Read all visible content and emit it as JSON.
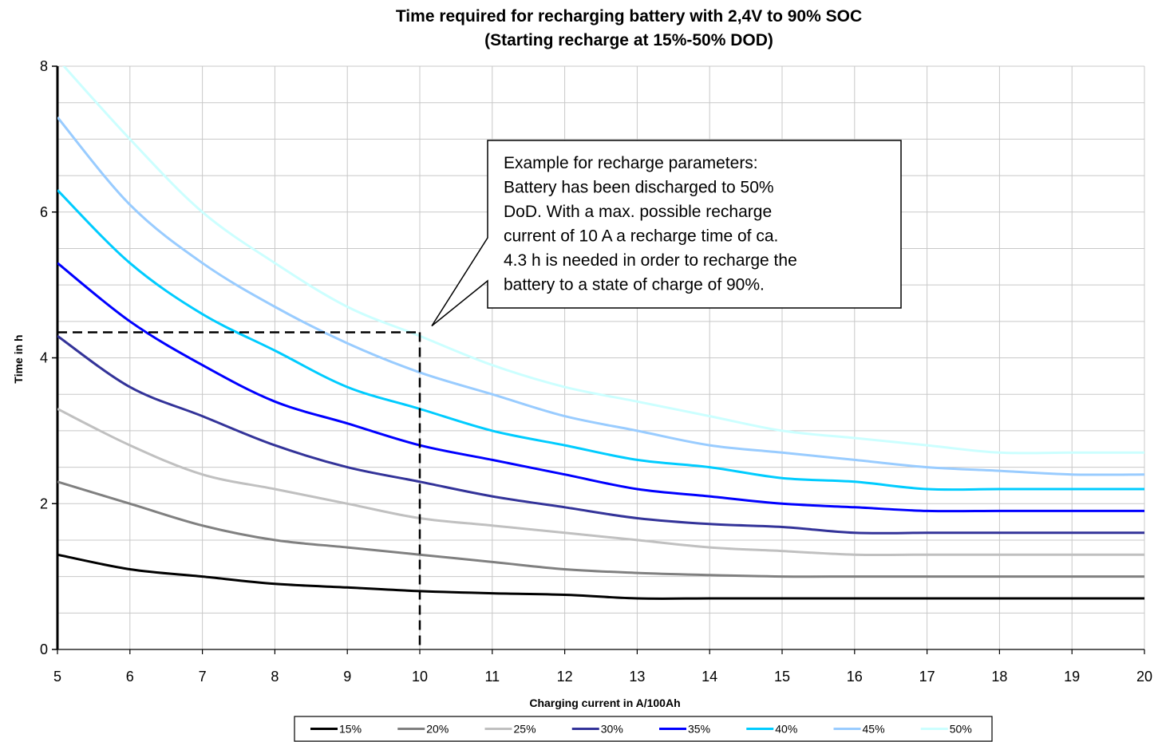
{
  "chart_data": {
    "type": "line",
    "title": "Time required for recharging battery with 2,4V to 90% SOC",
    "subtitle": "(Starting recharge at 15%-50% DOD)",
    "xlabel": "Charging current in A/100Ah",
    "ylabel": "Time in h",
    "xlim": [
      5,
      20
    ],
    "ylim": [
      0,
      8
    ],
    "x_ticks": [
      "5",
      "6",
      "7",
      "8",
      "9",
      "10",
      "11",
      "12",
      "13",
      "14",
      "15",
      "16",
      "17",
      "18",
      "19",
      "20"
    ],
    "y_ticks": [
      "0",
      "2",
      "4",
      "6",
      "8"
    ],
    "grid": true,
    "legend_position": "bottom",
    "x": [
      5,
      6,
      7,
      8,
      9,
      10,
      11,
      12,
      13,
      14,
      15,
      16,
      17,
      18,
      19,
      20
    ],
    "series": [
      {
        "name": "15%",
        "color": "#000000",
        "values": [
          1.3,
          1.1,
          1.0,
          0.9,
          0.85,
          0.8,
          0.77,
          0.75,
          0.7,
          0.7,
          0.7,
          0.7,
          0.7,
          0.7,
          0.7,
          0.7
        ]
      },
      {
        "name": "20%",
        "color": "#808080",
        "values": [
          2.3,
          2.0,
          1.7,
          1.5,
          1.4,
          1.3,
          1.2,
          1.1,
          1.05,
          1.02,
          1.0,
          1.0,
          1.0,
          1.0,
          1.0,
          1.0
        ]
      },
      {
        "name": "25%",
        "color": "#c0c0c0",
        "values": [
          3.3,
          2.8,
          2.4,
          2.2,
          2.0,
          1.8,
          1.7,
          1.6,
          1.5,
          1.4,
          1.35,
          1.3,
          1.3,
          1.3,
          1.3,
          1.3
        ]
      },
      {
        "name": "30%",
        "color": "#333399",
        "values": [
          4.3,
          3.6,
          3.2,
          2.8,
          2.5,
          2.3,
          2.1,
          1.95,
          1.8,
          1.72,
          1.68,
          1.6,
          1.6,
          1.6,
          1.6,
          1.6
        ]
      },
      {
        "name": "35%",
        "color": "#0000ff",
        "values": [
          5.3,
          4.5,
          3.9,
          3.4,
          3.1,
          2.8,
          2.6,
          2.4,
          2.2,
          2.1,
          2.0,
          1.95,
          1.9,
          1.9,
          1.9,
          1.9
        ]
      },
      {
        "name": "40%",
        "color": "#00ccff",
        "values": [
          6.3,
          5.3,
          4.6,
          4.1,
          3.6,
          3.3,
          3.0,
          2.8,
          2.6,
          2.5,
          2.35,
          2.3,
          2.2,
          2.2,
          2.2,
          2.2
        ]
      },
      {
        "name": "45%",
        "color": "#99ccff",
        "values": [
          7.3,
          6.1,
          5.3,
          4.7,
          4.2,
          3.8,
          3.5,
          3.2,
          3.0,
          2.8,
          2.7,
          2.6,
          2.5,
          2.45,
          2.4,
          2.4
        ]
      },
      {
        "name": "50%",
        "color": "#ccffff",
        "values": [
          8.1,
          7.0,
          6.0,
          5.3,
          4.7,
          4.3,
          3.9,
          3.6,
          3.4,
          3.2,
          3.0,
          2.9,
          2.8,
          2.7,
          2.7,
          2.7
        ]
      }
    ],
    "annotation": {
      "lines": [
        "Example for recharge parameters:",
        "Battery has been discharged to 50%",
        "DoD. With a max. possible recharge",
        "current of 10 A a recharge time of ca.",
        "4.3 h is needed in order to recharge the",
        "battery to a state of charge of 90%."
      ],
      "point_x": 10,
      "point_y": 4.35
    }
  }
}
